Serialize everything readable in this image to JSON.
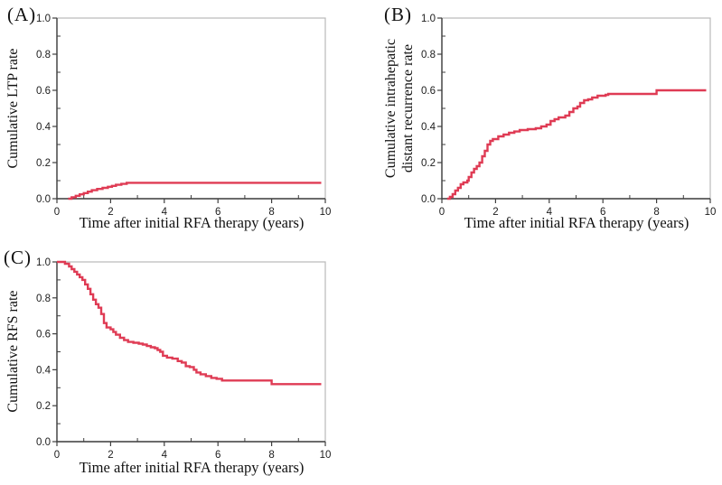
{
  "figure": {
    "colors": {
      "line": "#df3b54",
      "axis": "#3f3f3f",
      "frame": "#b9b9b9",
      "text": "#1c1c1c"
    }
  },
  "chart_data": [
    {
      "type": "line",
      "panel_label": "(A)",
      "ylabel": "Cumulative LTP rate",
      "ylabel_lines": [
        "Cumulative LTP rate"
      ],
      "xlabel": "Time after initial RFA therapy (years)",
      "xlim": [
        0,
        10
      ],
      "ylim": [
        0,
        1
      ],
      "grid": false,
      "legend": "none",
      "xticks": [
        0,
        2,
        4,
        6,
        8,
        10
      ],
      "xtick_labels": [
        "0",
        "2",
        "4",
        "6",
        "8",
        "10"
      ],
      "x_minor_ticks": [
        1,
        3,
        5,
        7,
        9
      ],
      "yticks": [
        0,
        0.2,
        0.4,
        0.6,
        0.8,
        1.0
      ],
      "ytick_labels": [
        "0.0",
        "0.2",
        "0.4",
        "0.6",
        "0.8",
        "1.0"
      ],
      "y_minor_ticks": [
        0.1,
        0.3,
        0.5,
        0.7,
        0.9
      ],
      "series": [
        {
          "name": "Cumulative LTP rate",
          "step": "after",
          "points": [
            [
              0.42,
              0
            ],
            [
              0.55,
              0.008
            ],
            [
              0.7,
              0.016
            ],
            [
              0.85,
              0.024
            ],
            [
              1.0,
              0.031
            ],
            [
              1.15,
              0.039
            ],
            [
              1.3,
              0.047
            ],
            [
              1.5,
              0.054
            ],
            [
              1.7,
              0.06
            ],
            [
              1.9,
              0.066
            ],
            [
              2.05,
              0.071
            ],
            [
              2.2,
              0.077
            ],
            [
              2.4,
              0.082
            ],
            [
              2.6,
              0.088
            ],
            [
              9.85,
              0.088
            ]
          ]
        }
      ]
    },
    {
      "type": "line",
      "panel_label": "(B)",
      "ylabel": "Cumulative intrahepatic distant recurrence rate",
      "ylabel_lines": [
        "Cumulative intrahepatic",
        "distant recurrence rate"
      ],
      "xlabel": "Time after initial RFA therapy (years)",
      "xlim": [
        0,
        10
      ],
      "ylim": [
        0,
        1
      ],
      "grid": false,
      "legend": "none",
      "xticks": [
        0,
        2,
        4,
        6,
        8,
        10
      ],
      "xtick_labels": [
        "0",
        "2",
        "4",
        "6",
        "8",
        "10"
      ],
      "x_minor_ticks": [
        1,
        3,
        5,
        7,
        9
      ],
      "yticks": [
        0,
        0.2,
        0.4,
        0.6,
        0.8,
        1.0
      ],
      "ytick_labels": [
        "0.0",
        "0.2",
        "0.4",
        "0.6",
        "0.8",
        "1.0"
      ],
      "y_minor_ticks": [
        0.1,
        0.3,
        0.5,
        0.7,
        0.9
      ],
      "series": [
        {
          "name": "Cumulative intrahepatic distant recurrence rate",
          "step": "after",
          "points": [
            [
              0.2,
              0
            ],
            [
              0.3,
              0.01
            ],
            [
              0.4,
              0.025
            ],
            [
              0.5,
              0.045
            ],
            [
              0.6,
              0.06
            ],
            [
              0.7,
              0.08
            ],
            [
              0.8,
              0.09
            ],
            [
              0.95,
              0.1
            ],
            [
              1.0,
              0.12
            ],
            [
              1.1,
              0.145
            ],
            [
              1.2,
              0.165
            ],
            [
              1.3,
              0.18
            ],
            [
              1.4,
              0.2
            ],
            [
              1.5,
              0.235
            ],
            [
              1.6,
              0.265
            ],
            [
              1.7,
              0.3
            ],
            [
              1.8,
              0.32
            ],
            [
              1.9,
              0.33
            ],
            [
              2.1,
              0.345
            ],
            [
              2.3,
              0.355
            ],
            [
              2.5,
              0.365
            ],
            [
              2.7,
              0.372
            ],
            [
              2.9,
              0.38
            ],
            [
              3.2,
              0.385
            ],
            [
              3.5,
              0.39
            ],
            [
              3.7,
              0.4
            ],
            [
              3.9,
              0.41
            ],
            [
              4.05,
              0.43
            ],
            [
              4.2,
              0.44
            ],
            [
              4.35,
              0.45
            ],
            [
              4.6,
              0.46
            ],
            [
              4.75,
              0.48
            ],
            [
              4.9,
              0.5
            ],
            [
              5.05,
              0.51
            ],
            [
              5.15,
              0.53
            ],
            [
              5.3,
              0.545
            ],
            [
              5.45,
              0.55
            ],
            [
              5.6,
              0.56
            ],
            [
              5.8,
              0.57
            ],
            [
              6.1,
              0.575
            ],
            [
              6.2,
              0.58
            ],
            [
              8.0,
              0.6
            ],
            [
              9.85,
              0.6
            ]
          ]
        }
      ]
    },
    {
      "type": "line",
      "panel_label": "(C)",
      "ylabel": "Cumulative RFS rate",
      "ylabel_lines": [
        "Cumulative RFS rate"
      ],
      "xlabel": "Time after initial RFA therapy (years)",
      "xlim": [
        0,
        10
      ],
      "ylim": [
        0,
        1
      ],
      "grid": false,
      "legend": "none",
      "xticks": [
        0,
        2,
        4,
        6,
        8,
        10
      ],
      "xtick_labels": [
        "0",
        "2",
        "4",
        "6",
        "8",
        "10"
      ],
      "x_minor_ticks": [
        1,
        3,
        5,
        7,
        9
      ],
      "yticks": [
        0,
        0.2,
        0.4,
        0.6,
        0.8,
        1.0
      ],
      "ytick_labels": [
        "0.0",
        "0.2",
        "0.4",
        "0.6",
        "0.8",
        "1.0"
      ],
      "y_minor_ticks": [
        0.1,
        0.3,
        0.5,
        0.7,
        0.9
      ],
      "series": [
        {
          "name": "Cumulative RFS rate",
          "step": "after",
          "points": [
            [
              0,
              1.0
            ],
            [
              0.3,
              0.99
            ],
            [
              0.45,
              0.975
            ],
            [
              0.55,
              0.96
            ],
            [
              0.65,
              0.945
            ],
            [
              0.75,
              0.93
            ],
            [
              0.85,
              0.915
            ],
            [
              0.95,
              0.9
            ],
            [
              1.05,
              0.875
            ],
            [
              1.15,
              0.85
            ],
            [
              1.25,
              0.82
            ],
            [
              1.35,
              0.79
            ],
            [
              1.45,
              0.765
            ],
            [
              1.55,
              0.745
            ],
            [
              1.65,
              0.71
            ],
            [
              1.75,
              0.66
            ],
            [
              1.85,
              0.635
            ],
            [
              2.0,
              0.625
            ],
            [
              2.1,
              0.61
            ],
            [
              2.2,
              0.595
            ],
            [
              2.35,
              0.578
            ],
            [
              2.5,
              0.565
            ],
            [
              2.65,
              0.555
            ],
            [
              2.85,
              0.55
            ],
            [
              3.05,
              0.545
            ],
            [
              3.2,
              0.54
            ],
            [
              3.35,
              0.532
            ],
            [
              3.5,
              0.525
            ],
            [
              3.65,
              0.52
            ],
            [
              3.75,
              0.51
            ],
            [
              3.85,
              0.5
            ],
            [
              3.95,
              0.478
            ],
            [
              4.1,
              0.468
            ],
            [
              4.3,
              0.462
            ],
            [
              4.5,
              0.448
            ],
            [
              4.65,
              0.44
            ],
            [
              4.8,
              0.42
            ],
            [
              4.95,
              0.415
            ],
            [
              5.1,
              0.4
            ],
            [
              5.2,
              0.385
            ],
            [
              5.35,
              0.375
            ],
            [
              5.55,
              0.365
            ],
            [
              5.75,
              0.355
            ],
            [
              5.95,
              0.35
            ],
            [
              6.15,
              0.34
            ],
            [
              8.0,
              0.32
            ],
            [
              9.85,
              0.32
            ]
          ]
        }
      ]
    }
  ]
}
